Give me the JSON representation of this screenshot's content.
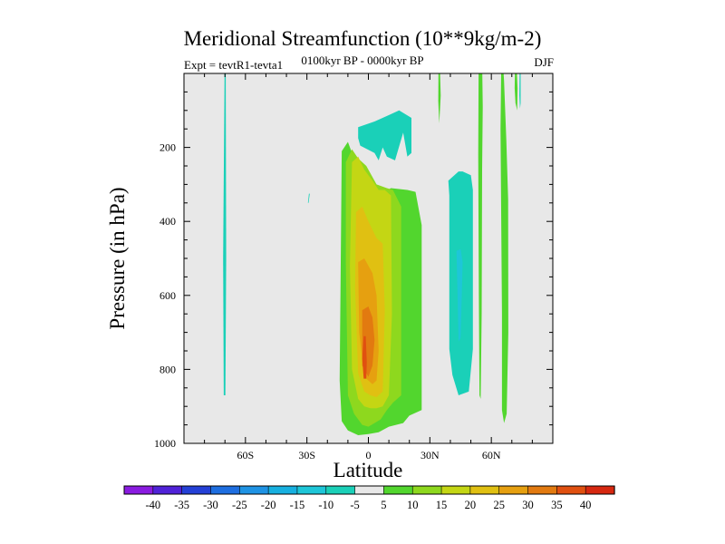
{
  "chart_data": {
    "type": "heatmap",
    "title": "Meridional Streamfunction (10**9kg/m-2)",
    "subtitle_left": "Expt = tevtR1-tevta1",
    "subtitle_center": "0100kyr BP - 0000kyr BP",
    "subtitle_right": "DJF",
    "xlabel": "Latitude",
    "ylabel": "Pressure (in hPa)",
    "xlim": [
      -90,
      90
    ],
    "ylim": [
      1000,
      0
    ],
    "x_ticks": [
      {
        "value": -60,
        "label": "60S"
      },
      {
        "value": -30,
        "label": "30S"
      },
      {
        "value": 0,
        "label": "0"
      },
      {
        "value": 30,
        "label": "30N"
      },
      {
        "value": 60,
        "label": "60N"
      }
    ],
    "y_ticks": [
      {
        "value": 200,
        "label": "200"
      },
      {
        "value": 400,
        "label": "400"
      },
      {
        "value": 600,
        "label": "600"
      },
      {
        "value": 800,
        "label": "800"
      },
      {
        "value": 1000,
        "label": "1000"
      }
    ],
    "colorbar": {
      "levels": [
        -40,
        -35,
        -30,
        -25,
        -20,
        -15,
        -10,
        -5,
        5,
        10,
        15,
        20,
        25,
        30,
        35,
        40
      ],
      "colors": [
        "#8a1be0",
        "#5022d8",
        "#2440d6",
        "#1e6ee0",
        "#1f93e4",
        "#17b0e0",
        "#1ec6d8",
        "#1ad0b8",
        "#e8e8e8",
        "#52d62e",
        "#8ed81e",
        "#c4d614",
        "#e0c012",
        "#e6a010",
        "#e27a10",
        "#e05010",
        "#d62810"
      ]
    },
    "regions": [
      {
        "lat": [
          -70.2,
          -69.6,
          -69.4,
          -69.8,
          -70.6,
          -70.9
        ],
        "p": [
          0,
          0,
          500,
          870,
          870,
          500
        ],
        "color": "#1ad0b8"
      },
      {
        "lat": [
          -29.0,
          -28.6,
          -29.2,
          -29.5
        ],
        "p": [
          325,
          325,
          350,
          350
        ],
        "color": "#1ad0b8"
      },
      {
        "lat": [
          -5,
          3,
          11,
          15,
          21,
          21,
          19,
          17,
          13,
          9,
          7,
          5,
          3,
          -4,
          -5
        ],
        "p": [
          145,
          130,
          110,
          100,
          120,
          215,
          225,
          160,
          235,
          225,
          200,
          235,
          215,
          195,
          175
        ],
        "color": "#1ad0b8"
      },
      {
        "lat": [
          -13,
          -10,
          -6,
          -1,
          6,
          11,
          19,
          23,
          26,
          26,
          20,
          17,
          10,
          5,
          0,
          -5,
          -10,
          -13,
          -14,
          -13.5
        ],
        "p": [
          210,
          185,
          245,
          265,
          325,
          310,
          315,
          320,
          410,
          910,
          925,
          945,
          955,
          970,
          975,
          978,
          965,
          940,
          830,
          510
        ],
        "color": "#52d62e"
      },
      {
        "lat": [
          -11,
          -8,
          -5,
          -1,
          4,
          9,
          12,
          16,
          16,
          12,
          9,
          6,
          3,
          0,
          -3,
          -7,
          -10,
          -11
        ],
        "p": [
          240,
          205,
          230,
          250,
          300,
          310,
          315,
          360,
          870,
          890,
          910,
          935,
          945,
          955,
          950,
          920,
          870,
          510
        ],
        "color": "#8ed81e"
      },
      {
        "lat": [
          -8,
          -5,
          -2,
          2,
          5,
          8,
          11,
          11.5,
          10,
          7,
          4,
          1,
          -2,
          -5,
          -8,
          -9
        ],
        "p": [
          240,
          225,
          260,
          290,
          315,
          315,
          330,
          650,
          870,
          900,
          905,
          905,
          900,
          880,
          800,
          520
        ],
        "color": "#c4d614"
      },
      {
        "lat": [
          -6,
          -3,
          0,
          4,
          7,
          8,
          7,
          4,
          1,
          -2,
          -5,
          -6.5
        ],
        "p": [
          375,
          360,
          400,
          445,
          460,
          640,
          860,
          875,
          870,
          860,
          810,
          580
        ],
        "color": "#e0c012"
      },
      {
        "lat": [
          -5,
          -2,
          2,
          4,
          5,
          4,
          2,
          -2,
          -4.5
        ],
        "p": [
          510,
          500,
          540,
          600,
          750,
          830,
          840,
          820,
          700
        ],
        "color": "#e6a010"
      },
      {
        "lat": [
          -3,
          0,
          2,
          3,
          2,
          0,
          -3
        ],
        "p": [
          640,
          630,
          660,
          720,
          790,
          820,
          790
        ],
        "color": "#e27a10"
      },
      {
        "lat": [
          -2.3,
          -1.3,
          -0.8,
          -1.0,
          -2.3,
          -3.0
        ],
        "p": [
          710,
          710,
          780,
          825,
          825,
          770
        ],
        "color": "#e05010"
      },
      {
        "lat": [
          39,
          44,
          46,
          50,
          51,
          51,
          49,
          44,
          41,
          39.5,
          39.5
        ],
        "p": [
          290,
          265,
          265,
          275,
          315,
          745,
          860,
          870,
          815,
          745,
          330
        ],
        "color": "#1ad0b8"
      },
      {
        "lat": [
          43,
          45,
          46,
          45,
          44,
          43.5
        ],
        "p": [
          480,
          475,
          510,
          715,
          725,
          600
        ],
        "color": "#1ec6d8"
      },
      {
        "lat": [
          34.2,
          35.0,
          35.3,
          34.6,
          34.1
        ],
        "p": [
          0,
          0,
          60,
          135,
          75
        ],
        "color": "#52d62e"
      },
      {
        "lat": [
          53.8,
          55.6,
          55.8,
          55.5,
          55.3,
          54.8,
          54.2,
          53.9,
          53.6
        ],
        "p": [
          0,
          0,
          90,
          260,
          650,
          880,
          870,
          600,
          220
        ],
        "color": "#52d62e"
      },
      {
        "lat": [
          64.8,
          66.0,
          66.2,
          67.3,
          68.2,
          68.3,
          67.5,
          66.2,
          65.2,
          65.2,
          64.5
        ],
        "p": [
          0,
          0,
          20,
          180,
          340,
          700,
          920,
          945,
          910,
          650,
          150
        ],
        "color": "#52d62e"
      },
      {
        "lat": [
          71.5,
          72.5,
          72.8,
          72.6,
          71.8,
          71.4
        ],
        "p": [
          0,
          0,
          40,
          100,
          80,
          40
        ],
        "color": "#52d62e"
      },
      {
        "lat": [
          73.8,
          74.3,
          74.3,
          74.0,
          73.7
        ],
        "p": [
          0,
          0,
          80,
          95,
          60
        ],
        "color": "#1ad0b8"
      }
    ]
  }
}
